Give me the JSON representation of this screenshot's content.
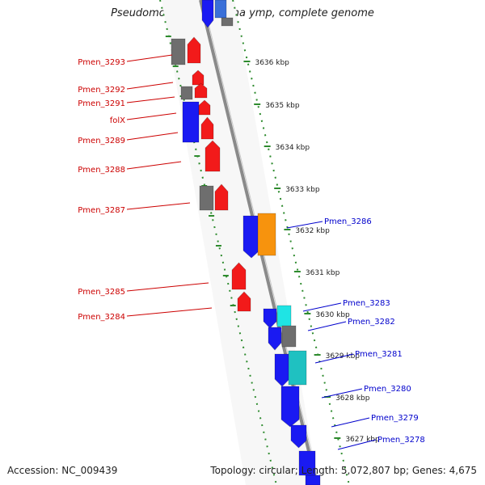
{
  "title": "Pseudomonas mendocina ymp, complete genome",
  "footer": {
    "accession": "Accession: NC_009439",
    "topology": "Topology: circular; Length: 5,072,807 bp; Genes: 4,675"
  },
  "colors": {
    "red": "#f21a1a",
    "blue": "#1a1af2",
    "grey": "#6e6e6e",
    "orange": "#f7930d",
    "cyan": "#1fe4e4",
    "teal": "#1fc1c1",
    "backbone": "#8a8a8a",
    "left_label": "#cc0000",
    "right_label": "#0000cc",
    "dotted_line": "#2e8b2e"
  },
  "kbp_ticks": [
    "3636 kbp",
    "3635 kbp",
    "3634 kbp",
    "3633 kbp",
    "3632 kbp",
    "3631 kbp",
    "3630 kbp",
    "3629 kbp",
    "3628 kbp",
    "3627 kbp"
  ],
  "left_labels": [
    "Pmen_3293",
    "Pmen_3292",
    "Pmen_3291",
    "folX",
    "Pmen_3289",
    "Pmen_3288",
    "Pmen_3287",
    "Pmen_3285",
    "Pmen_3284"
  ],
  "right_labels": [
    "Pmen_3286",
    "Pmen_3283",
    "Pmen_3282",
    "Pmen_3281",
    "Pmen_3280",
    "Pmen_3279",
    "Pmen_3278"
  ]
}
